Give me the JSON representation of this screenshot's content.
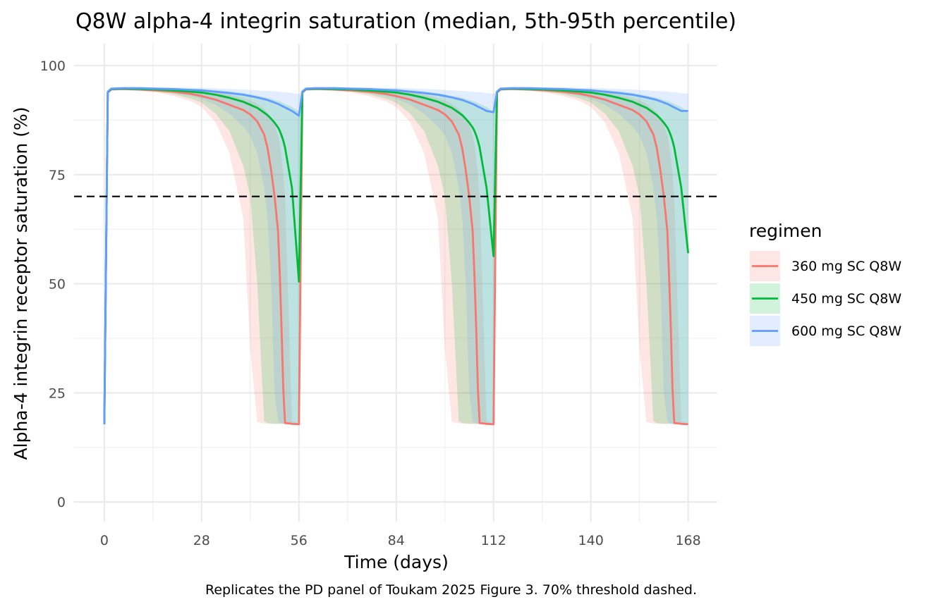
{
  "chart_data": {
    "type": "line",
    "title": "Q8W alpha-4 integrin saturation (median, 5th-95th percentile)",
    "xlabel": "Time (days)",
    "ylabel": "Alpha-4 integrin receptor saturation (%)",
    "caption": "Replicates the PD panel of Toukam 2025 Figure 3. 70% threshold dashed.",
    "xlim": [
      -8.7,
      176.4
    ],
    "ylim": [
      -4.5,
      105
    ],
    "x_ticks": [
      0,
      28,
      56,
      84,
      112,
      140,
      168
    ],
    "x_tick_labels": [
      "0",
      "28",
      "56",
      "84",
      "112",
      "140",
      "168"
    ],
    "y_ticks": [
      0,
      25,
      50,
      75,
      100
    ],
    "y_tick_labels": [
      "0",
      "25",
      "50",
      "75",
      "100"
    ],
    "grid": true,
    "threshold": {
      "y": 70,
      "style": "dashed",
      "color": "#000000"
    },
    "dosing_interval_days": 56,
    "n_cycles": 3,
    "legend": {
      "title": "regimen",
      "position": "right"
    },
    "series": [
      {
        "name": "360 mg SC Q8W",
        "color": "#F8766D",
        "band_color": "#F8766D",
        "x": [
          0,
          1,
          2,
          5,
          10,
          15,
          20,
          25,
          28,
          32,
          36,
          40,
          42,
          44,
          46,
          47,
          48,
          49,
          50,
          50.5,
          51,
          51.5,
          52,
          54,
          56
        ],
        "median": [
          17.8,
          93.8,
          94.5,
          94.6,
          94.5,
          94.3,
          94.0,
          93.5,
          93.0,
          92.2,
          91.0,
          89.8,
          88.8,
          87.2,
          84.2,
          81.0,
          76.0,
          70.0,
          62.0,
          52.0,
          40.0,
          26.0,
          18.1,
          17.9,
          17.8
        ],
        "cycle_end_median": [
          17.8,
          17.8,
          17.8
        ],
        "p05": [
          17.8,
          93.6,
          94.3,
          94.4,
          94.2,
          93.8,
          93.0,
          91.8,
          90.5,
          87.0,
          80.0,
          65.0,
          35.0,
          18.3,
          18.0,
          17.9,
          17.9,
          17.9,
          17.9,
          17.9,
          17.9,
          17.8,
          17.8,
          17.8,
          17.8
        ],
        "p95": [
          17.8,
          94.2,
          94.8,
          94.9,
          94.9,
          94.8,
          94.7,
          94.5,
          94.3,
          93.9,
          93.3,
          92.5,
          92.0,
          91.2,
          90.0,
          89.2,
          88.0,
          86.5,
          84.0,
          82.0,
          79.0,
          75.0,
          70.0,
          18.5,
          18.0
        ]
      },
      {
        "name": "450 mg SC Q8W",
        "color": "#00BA38",
        "band_color": "#00BA38",
        "x": [
          0,
          1,
          2,
          5,
          10,
          15,
          20,
          25,
          28,
          32,
          36,
          40,
          42,
          44,
          46,
          47,
          48,
          49,
          50,
          50.5,
          51,
          51.5,
          52,
          54,
          56
        ],
        "median": [
          17.8,
          93.9,
          94.6,
          94.7,
          94.6,
          94.5,
          94.3,
          94.0,
          93.8,
          93.3,
          92.6,
          91.7,
          91.0,
          90.3,
          89.2,
          88.6,
          87.8,
          86.9,
          85.8,
          85.0,
          84.0,
          82.8,
          81.2,
          72.0,
          50.5
        ],
        "cycle_end_median": [
          50.5,
          56.3,
          57.0
        ],
        "p05": [
          17.8,
          93.7,
          94.4,
          94.5,
          94.3,
          94.0,
          93.4,
          92.4,
          91.5,
          89.0,
          85.0,
          77.0,
          70.0,
          50.0,
          18.5,
          18.1,
          18.0,
          17.9,
          17.9,
          17.9,
          17.9,
          17.9,
          17.9,
          17.8,
          17.8
        ],
        "p95": [
          17.8,
          94.3,
          94.9,
          95.0,
          95.0,
          94.9,
          94.8,
          94.7,
          94.6,
          94.4,
          94.1,
          93.7,
          93.4,
          93.1,
          92.8,
          92.6,
          92.4,
          92.1,
          91.9,
          91.8,
          91.6,
          91.4,
          91.2,
          90.5,
          89.5
        ]
      },
      {
        "name": "600 mg SC Q8W",
        "color": "#619CFF",
        "band_color": "#619CFF",
        "x": [
          0,
          1,
          2,
          5,
          10,
          15,
          20,
          25,
          28,
          32,
          36,
          40,
          42,
          44,
          46,
          47,
          48,
          49,
          50,
          50.5,
          51,
          51.5,
          52,
          54,
          56
        ],
        "median": [
          17.8,
          94.0,
          94.7,
          94.8,
          94.8,
          94.7,
          94.6,
          94.4,
          94.3,
          94.0,
          93.7,
          93.3,
          93.0,
          92.7,
          92.3,
          92.1,
          91.8,
          91.5,
          91.2,
          91.0,
          90.8,
          90.6,
          90.4,
          89.6,
          88.5
        ],
        "cycle_end_median": [
          88.5,
          89.3,
          89.6
        ],
        "p05": [
          17.8,
          93.8,
          94.5,
          94.6,
          94.5,
          94.2,
          93.7,
          93.0,
          92.4,
          91.0,
          89.0,
          86.0,
          84.0,
          80.0,
          72.0,
          65.0,
          50.0,
          25.0,
          18.5,
          18.2,
          18.0,
          17.9,
          17.9,
          17.8,
          17.8
        ],
        "p95": [
          17.8,
          94.4,
          95.0,
          95.1,
          95.1,
          95.0,
          95.0,
          94.9,
          94.9,
          94.8,
          94.6,
          94.5,
          94.4,
          94.3,
          94.2,
          94.2,
          94.1,
          94.1,
          94.0,
          94.0,
          93.9,
          93.9,
          93.9,
          93.7,
          93.5
        ]
      }
    ]
  }
}
